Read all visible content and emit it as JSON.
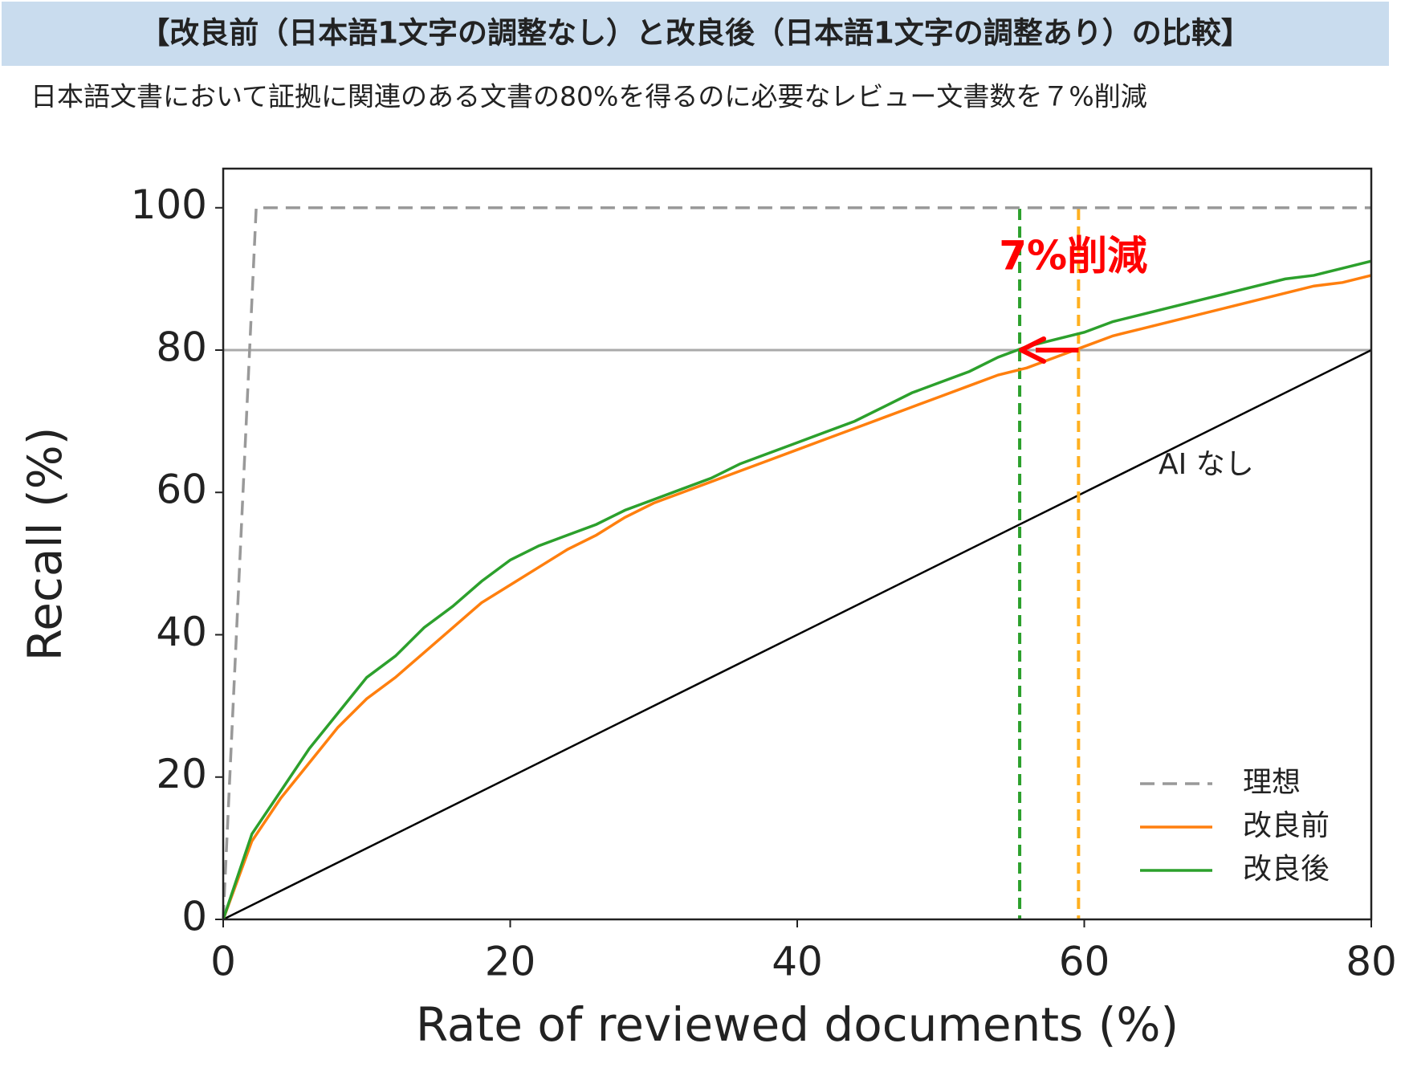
{
  "chart_data": {
    "type": "line",
    "title": "【改良前（日本語1文字の調整なし）と改良後（日本語1文字の調整あり）の比較】",
    "subtitle": "日本語文書において証拠に関連のある文書の80%を得るのに必要なレビュー文書数を７%削減",
    "xlabel": "Rate of reviewed documents (%)",
    "ylabel": "Recall (%)",
    "xlim": [
      0,
      80
    ],
    "ylim": [
      0,
      105.5
    ],
    "xticks": [
      0,
      20,
      40,
      60,
      80
    ],
    "yticks": [
      0,
      20,
      40,
      60,
      80,
      100
    ],
    "grid": false,
    "legend": "lower right",
    "series": [
      {
        "name": "理想",
        "color": "#999999",
        "style": "dashed",
        "x": [
          0,
          2.3,
          80
        ],
        "values": [
          0,
          100,
          100
        ]
      },
      {
        "name": "改良前",
        "color": "#ff7f0e",
        "style": "solid",
        "x": [
          0,
          2,
          4,
          6,
          8,
          10,
          12,
          14,
          16,
          18,
          20,
          22,
          24,
          26,
          28,
          30,
          32,
          34,
          36,
          38,
          40,
          42,
          44,
          46,
          48,
          50,
          52,
          54,
          56,
          58,
          60,
          62,
          64,
          66,
          68,
          70,
          72,
          74,
          76,
          78,
          80
        ],
        "values": [
          0,
          11,
          17,
          22,
          27,
          31,
          34,
          37.5,
          41,
          44.5,
          47,
          49.5,
          52,
          54,
          56.5,
          58.5,
          60,
          61.5,
          63,
          64.5,
          66,
          67.5,
          69,
          70.5,
          72,
          73.5,
          75,
          76.5,
          77.5,
          79,
          80.5,
          82,
          83,
          84,
          85,
          86,
          87,
          88,
          89,
          89.5,
          90.5
        ]
      },
      {
        "name": "改良後",
        "color": "#2ca02c",
        "style": "solid",
        "x": [
          0,
          2,
          4,
          6,
          8,
          10,
          12,
          14,
          16,
          18,
          20,
          22,
          24,
          26,
          28,
          30,
          32,
          34,
          36,
          38,
          40,
          42,
          44,
          46,
          48,
          50,
          52,
          54,
          56,
          58,
          60,
          62,
          64,
          66,
          68,
          70,
          72,
          74,
          76,
          78,
          80
        ],
        "values": [
          0,
          12,
          18,
          24,
          29,
          34,
          37,
          41,
          44,
          47.5,
          50.5,
          52.5,
          54,
          55.5,
          57.5,
          59,
          60.5,
          62,
          64,
          65.5,
          67,
          68.5,
          70,
          72,
          74,
          75.5,
          77,
          79,
          80.5,
          81.5,
          82.5,
          84,
          85,
          86,
          87,
          88,
          89,
          90,
          90.5,
          91.5,
          92.5
        ]
      }
    ],
    "baseline": {
      "label": "AI なし",
      "color": "#000000",
      "x": [
        0,
        80
      ],
      "values": [
        0,
        80
      ]
    },
    "hline": {
      "value": 80,
      "color": "#aaaaaa"
    },
    "vlines": [
      {
        "x": 55.5,
        "color": "#2ca02c"
      },
      {
        "x": 59.6,
        "color": "#ffb020"
      }
    ],
    "annotation": {
      "text": "7%削減",
      "color": "#ff0000"
    }
  }
}
